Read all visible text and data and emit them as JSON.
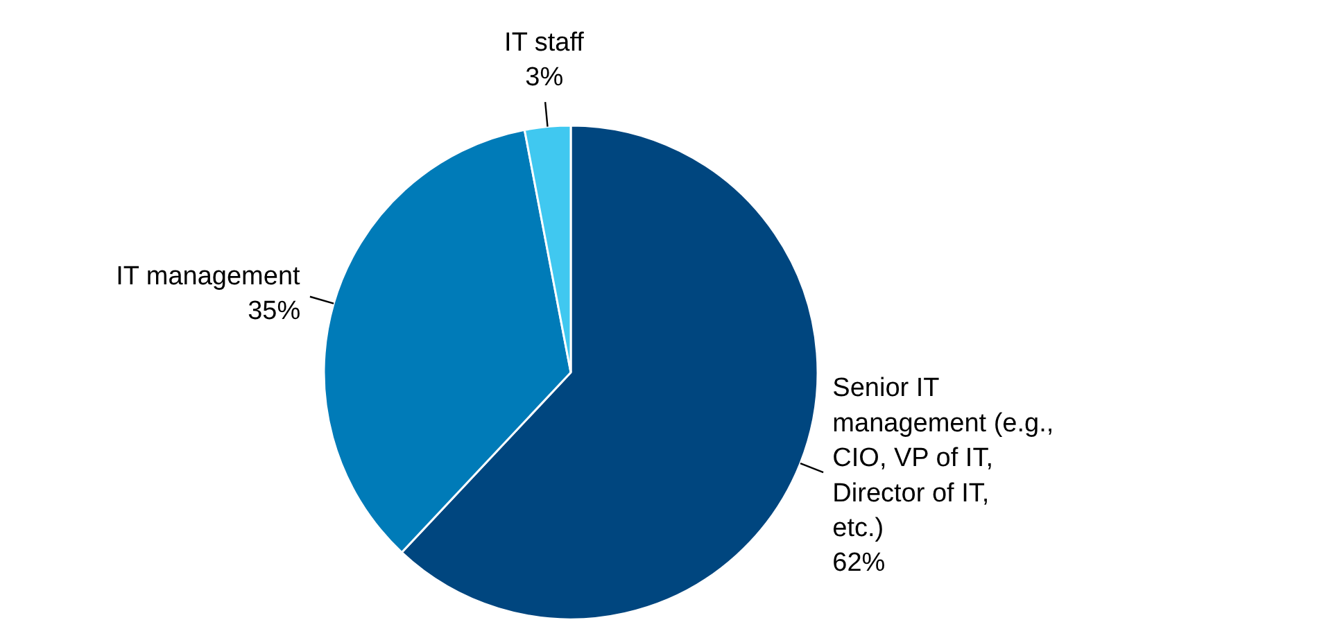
{
  "chart_data": {
    "type": "pie",
    "categories": [
      "Senior IT management (e.g., CIO, VP of IT, Director of IT, etc.)",
      "IT management",
      "IT staff"
    ],
    "values": [
      62,
      35,
      3
    ],
    "colors": [
      "#00467f",
      "#007bb8",
      "#40c8f0"
    ],
    "value_labels": [
      "62%",
      "35%",
      "3%"
    ]
  }
}
